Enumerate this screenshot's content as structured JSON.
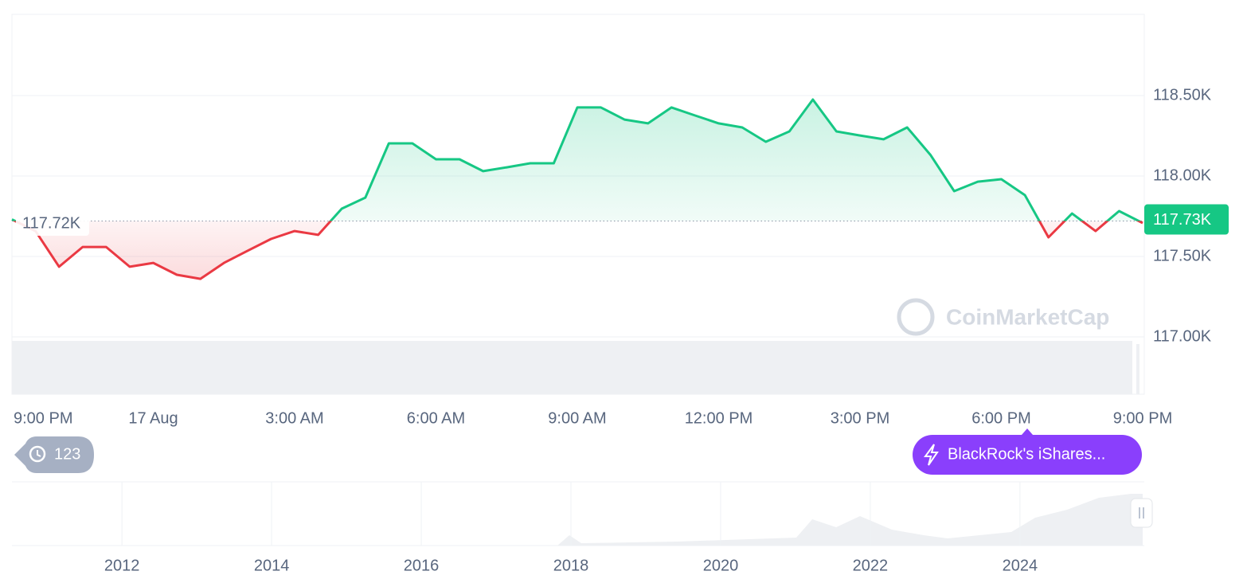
{
  "chart_data": {
    "type": "line",
    "categories": [
      "9:00 PM",
      null,
      null,
      null,
      null,
      null,
      "17 Aug",
      null,
      null,
      null,
      null,
      null,
      "3:00 AM",
      null,
      null,
      null,
      null,
      null,
      "6:00 AM",
      null,
      null,
      null,
      null,
      null,
      "9:00 AM",
      null,
      null,
      null,
      null,
      null,
      "12:00 PM",
      null,
      null,
      null,
      null,
      null,
      "3:00 PM",
      null,
      null,
      null,
      null,
      null,
      "6:00 PM",
      null,
      null,
      null,
      null,
      null,
      "9:00 PM"
    ],
    "values": [
      117730,
      117658,
      117436,
      117559,
      117559,
      117436,
      117460,
      117386,
      117361,
      117460,
      117535,
      117609,
      117658,
      117634,
      117797,
      117866,
      118203,
      118203,
      118104,
      118104,
      118030,
      118054,
      118079,
      118079,
      118426,
      118426,
      118351,
      118327,
      118426,
      118376,
      118327,
      118302,
      118213,
      118277,
      118475,
      118277,
      118252,
      118228,
      118302,
      118129,
      117906,
      117965,
      117980,
      117881,
      117619,
      117767,
      117658,
      117782,
      117708
    ],
    "ylim": [
      117000,
      119000
    ],
    "yticks": [
      {
        "value": 118500,
        "label": "118.50K"
      },
      {
        "value": 118000,
        "label": "118.00K"
      },
      {
        "value": 117500,
        "label": "117.50K"
      },
      {
        "value": 117000,
        "label": "117.00K"
      }
    ],
    "baseline": {
      "value": 117720,
      "label": "117.72K"
    },
    "last_price": {
      "value": 117730,
      "label": "117.73K"
    },
    "up_color": "#16c784",
    "down_color": "#ea3943",
    "grid": true
  },
  "navigator": {
    "xlim": [
      2010.53,
      2025.64
    ],
    "xticks": [
      2012,
      2014,
      2016,
      2018,
      2020,
      2022,
      2024
    ]
  },
  "ui": {
    "watermark": "CoinMarketCap",
    "comment_count": "123",
    "news_pill": "BlackRock's iShares..."
  }
}
